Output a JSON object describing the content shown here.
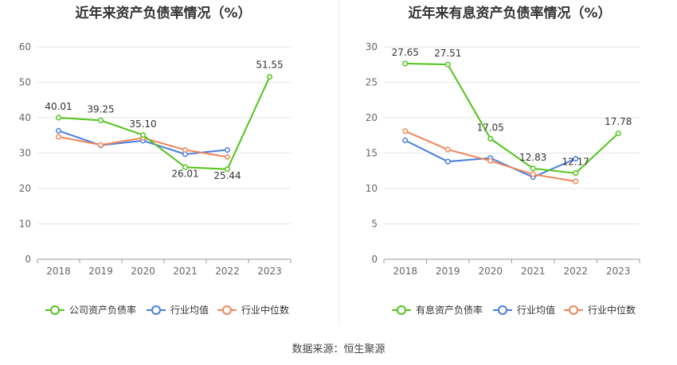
{
  "chart_data": [
    {
      "type": "line",
      "title": "近年来资产负债率情况（%）",
      "categories": [
        "2018",
        "2019",
        "2020",
        "2021",
        "2022",
        "2023"
      ],
      "ylim": [
        0,
        60
      ],
      "yticks": [
        0,
        10,
        20,
        30,
        40,
        50,
        60
      ],
      "grid": true,
      "legend_position": "bottom",
      "series": [
        {
          "name": "公司资产负债率",
          "color": "#52c41a",
          "values": [
            40.01,
            39.25,
            35.1,
            26.01,
            25.44,
            51.55
          ],
          "labels": [
            "40.01",
            "39.25",
            "35.10",
            "26.01",
            "25.44",
            "51.55"
          ]
        },
        {
          "name": "行业均值",
          "color": "#4a7ee0",
          "values": [
            36.3,
            32.2,
            33.5,
            29.7,
            30.9,
            null
          ]
        },
        {
          "name": "行业中位数",
          "color": "#f0855a",
          "values": [
            34.6,
            32.3,
            34.3,
            30.9,
            28.9,
            null
          ]
        }
      ]
    },
    {
      "type": "line",
      "title": "近年来有息资产负债率情况（%）",
      "categories": [
        "2018",
        "2019",
        "2020",
        "2021",
        "2022",
        "2023"
      ],
      "ylim": [
        0,
        30
      ],
      "yticks": [
        0,
        5,
        10,
        15,
        20,
        25,
        30
      ],
      "grid": true,
      "legend_position": "bottom",
      "series": [
        {
          "name": "有息资产负债率",
          "color": "#52c41a",
          "values": [
            27.65,
            27.51,
            17.05,
            12.83,
            12.17,
            17.78
          ],
          "labels": [
            "27.65",
            "27.51",
            "17.05",
            "12.83",
            "12.17",
            "17.78"
          ]
        },
        {
          "name": "行业均值",
          "color": "#4a7ee0",
          "values": [
            16.8,
            13.8,
            14.3,
            11.6,
            14.2,
            null
          ]
        },
        {
          "name": "行业中位数",
          "color": "#f0855a",
          "values": [
            18.1,
            15.5,
            13.9,
            12.0,
            11.0,
            null
          ]
        }
      ]
    }
  ],
  "source": {
    "label": "数据来源：",
    "value": "恒生聚源"
  }
}
